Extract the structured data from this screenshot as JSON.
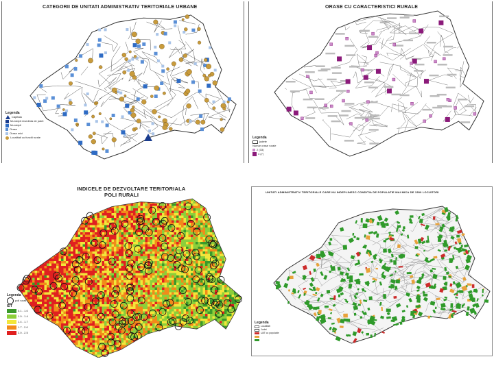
{
  "maps": {
    "urban": {
      "title": "CATEGORII DE UNITATI ADMINISTRATIV TERITORIALE URBANE",
      "legend_title": "Legenda",
      "legend_items": [
        "Capitala",
        "Municipii resedinta de judet",
        "Municipii",
        "Orase",
        "Orase mici",
        "Localitati cu functii rurale"
      ],
      "colors": {
        "capital": "#1a3d8f",
        "large": "#2e6bc4",
        "medium": "#5a8fd6",
        "small": "#a9c4e8",
        "rural": "#c89b3c"
      }
    },
    "rural_towns": {
      "title": "ORASE CU CARACTERISTICI RURALE",
      "legend_title": "Legenda",
      "legend_items": [
        "judete",
        "Numar orase rurale",
        "2 (33)",
        "4 (7)"
      ],
      "colors": {
        "small": "#c98ac9",
        "large": "#8b1a7a"
      }
    },
    "idt": {
      "title": "INDICELE DE DEZVOLTARE TERITORIALA",
      "subtitle": "POLI RURALI",
      "legend_title": "Legenda",
      "legend_poles": "poli rurali",
      "legend_idt": "IDT",
      "classes": [
        "0.1 - 1.0",
        "1.0 - 1.4",
        "1.4 - 1.7",
        "1.7 - 2.0",
        "2.0 - 2.5"
      ],
      "colors": [
        "#3a9a2a",
        "#8ccf3a",
        "#f2e63a",
        "#f28a1a",
        "#e02020"
      ]
    },
    "uat": {
      "title": "UNITATI ADMINISTRATIV TERITORIALE CARE NU INDEPLINESC CONDITIA DE POPULATIE MAI MICA DE 1500 LOCUITORI",
      "legend_title": "Legenda",
      "legend_items": [
        "Localitati",
        "Judet",
        "UAT cu populatie"
      ],
      "colors": [
        "#2f9a2a",
        "#e8a23a",
        "#cc2b2b"
      ]
    }
  }
}
